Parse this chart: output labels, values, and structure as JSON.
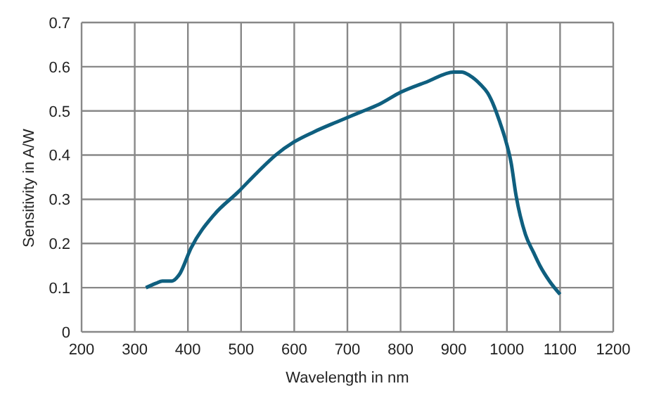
{
  "chart_data": {
    "type": "line",
    "xlabel": "Wavelength in nm",
    "ylabel": "Sensitivity in A/W",
    "x": [
      321,
      340,
      352,
      370,
      384,
      406,
      450,
      494,
      530,
      565,
      600,
      636,
      680,
      724,
      760,
      800,
      850,
      900,
      915,
      930,
      950,
      964,
      976,
      986,
      996,
      1008,
      1017,
      1035,
      1050,
      1062,
      1080,
      1100
    ],
    "series": [
      {
        "color": "#0f5f7f",
        "values": [
          0.1,
          0.11,
          0.115,
          0.115,
          0.13,
          0.19,
          0.266,
          0.316,
          0.36,
          0.4,
          0.43,
          0.452,
          0.475,
          0.497,
          0.515,
          0.542,
          0.566,
          0.588,
          0.588,
          0.58,
          0.56,
          0.54,
          0.51,
          0.477,
          0.44,
          0.382,
          0.31,
          0.22,
          0.18,
          0.15,
          0.115,
          0.085
        ]
      }
    ],
    "xlim": [
      200,
      1200
    ],
    "xticks": [
      200,
      300,
      400,
      500,
      600,
      700,
      800,
      900,
      1000,
      1100,
      1200
    ],
    "ylim": [
      0,
      0.7
    ],
    "yticks": [
      0,
      0.1,
      0.2,
      0.3,
      0.4,
      0.5,
      0.6,
      0.7
    ],
    "grid": true,
    "legend": false,
    "marker": "none",
    "line_style": "solid"
  }
}
